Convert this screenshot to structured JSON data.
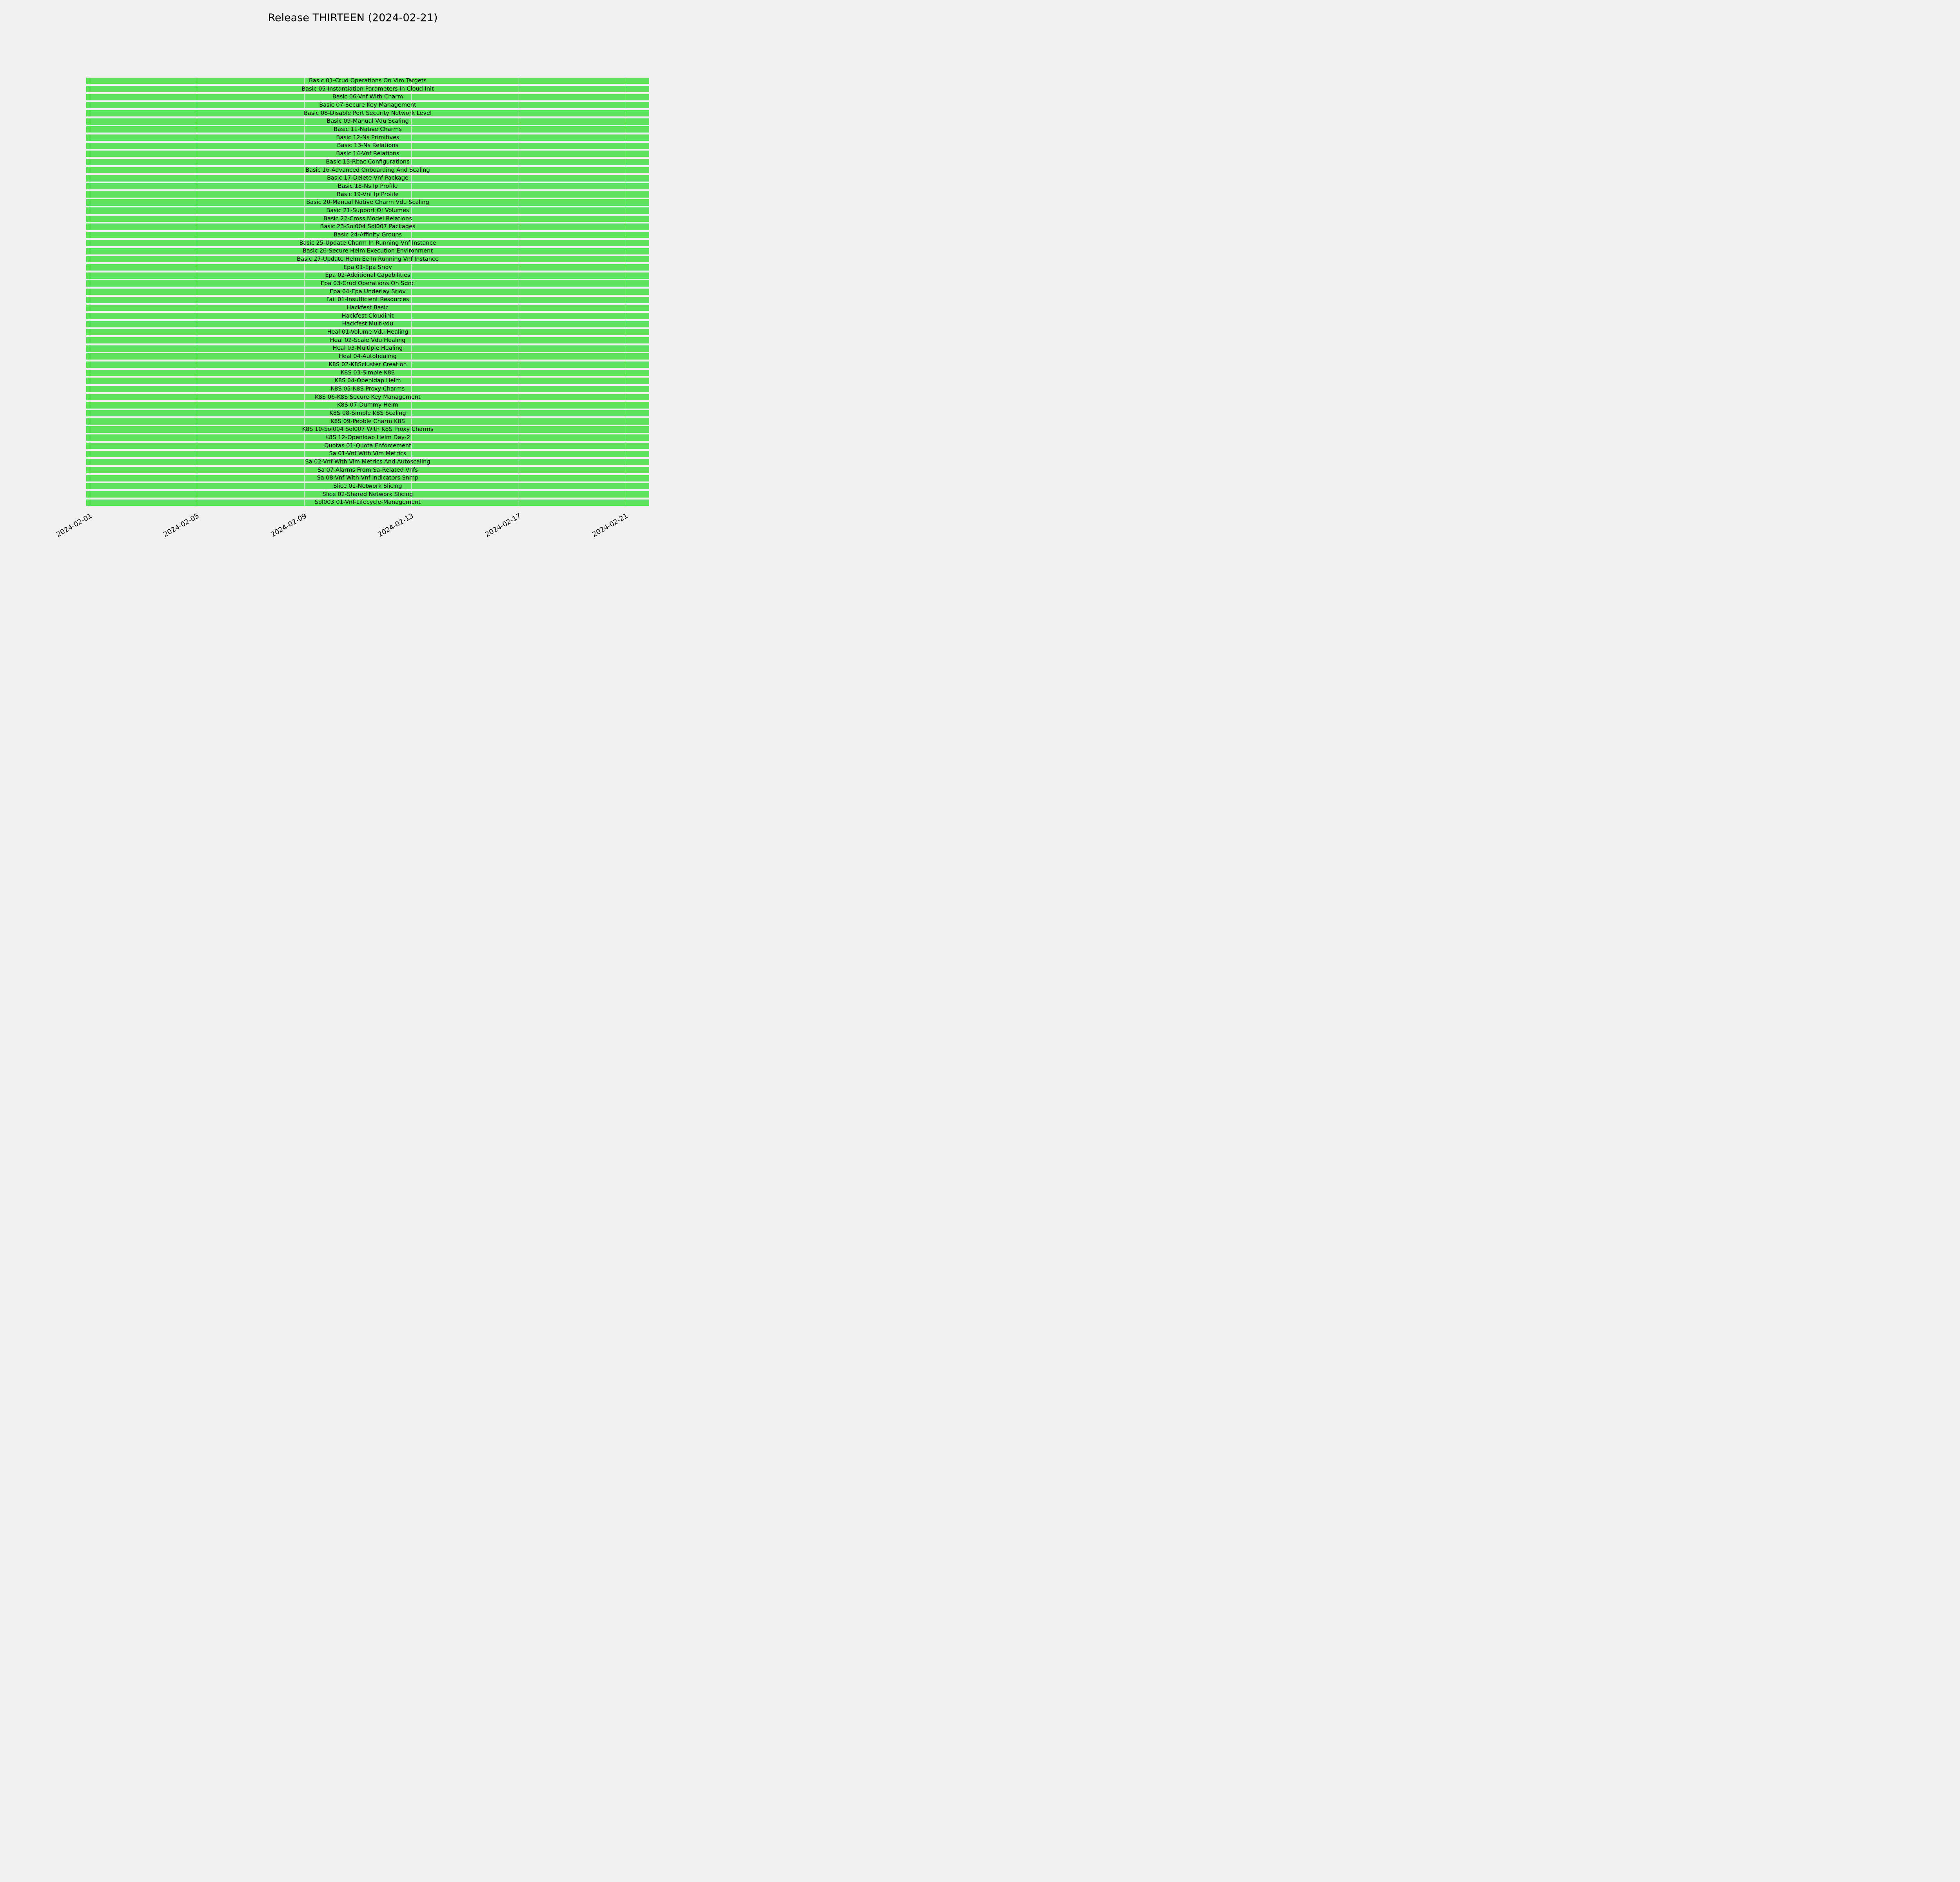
{
  "title": "Release THIRTEEN (2024-02-21)",
  "chart_data": {
    "type": "bar",
    "subtype": "gantt",
    "orientation": "horizontal",
    "title": "Release THIRTEEN (2024-02-21)",
    "xlabel": "",
    "ylabel": "",
    "grid": true,
    "legend": false,
    "background_color": "#f0f0f0",
    "bar_color": "#5fe35f",
    "x_ticks": [
      "2024-02-01",
      "2024-02-05",
      "2024-02-09",
      "2024-02-13",
      "2024-02-17",
      "2024-02-21"
    ],
    "x_axis_start": "2024-01-31T21:00:00Z",
    "x_axis_end": "2024-02-21T21:00:00Z",
    "bar_start": "2024-02-01",
    "bar_end": "2024-02-21",
    "note": "Every test bar spans the full date range of the axis",
    "categories": [
      "Basic 01-Crud Operations On Vim Targets",
      "Basic 05-Instantiation Parameters In Cloud Init",
      "Basic 06-Vnf With Charm",
      "Basic 07-Secure Key Management",
      "Basic 08-Disable Port Security Network Level",
      "Basic 09-Manual Vdu Scaling",
      "Basic 11-Native Charms",
      "Basic 12-Ns Primitives",
      "Basic 13-Ns Relations",
      "Basic 14-Vnf Relations",
      "Basic 15-Rbac Configurations",
      "Basic 16-Advanced Onboarding And Scaling",
      "Basic 17-Delete Vnf Package",
      "Basic 18-Ns Ip Profile",
      "Basic 19-Vnf Ip Profile",
      "Basic 20-Manual Native Charm Vdu Scaling",
      "Basic 21-Support Of Volumes",
      "Basic 22-Cross Model Relations",
      "Basic 23-Sol004 Sol007 Packages",
      "Basic 24-Affinity Groups",
      "Basic 25-Update Charm In Running Vnf Instance",
      "Basic 26-Secure Helm Execution Environment",
      "Basic 27-Update Helm Ee In Running Vnf Instance",
      "Epa 01-Epa Sriov",
      "Epa 02-Additional Capabilities",
      "Epa 03-Crud Operations On Sdnc",
      "Epa 04-Epa Underlay Sriov",
      "Fail 01-Insufficient Resources",
      "Hackfest Basic",
      "Hackfest Cloudinit",
      "Hackfest Multivdu",
      "Heal 01-Volume Vdu Healing",
      "Heal 02-Scale Vdu Healing",
      "Heal 03-Multiple Healing",
      "Heal 04-Autohealing",
      "K8S 02-K8Scluster Creation",
      "K8S 03-Simple K8S",
      "K8S 04-Openldap Helm",
      "K8S 05-K8S Proxy Charms",
      "K8S 06-K8S Secure Key Management",
      "K8S 07-Dummy Helm",
      "K8S 08-Simple K8S Scaling",
      "K8S 09-Pebble Charm K8S",
      "K8S 10-Sol004 Sol007 With K8S Proxy Charms",
      "K8S 12-Openldap Helm Day-2",
      "Quotas 01-Quota Enforcement",
      "Sa 01-Vnf With Vim Metrics",
      "Sa 02-Vnf With Vim Metrics And Autoscaling",
      "Sa 07-Alarms From Sa-Related Vnfs",
      "Sa 08-Vnf With Vnf Indicators Snmp",
      "Slice 01-Network Slicing",
      "Slice 02-Shared Network Slicing",
      "Sol003 01-Vnf-Lifecycle-Management"
    ]
  }
}
